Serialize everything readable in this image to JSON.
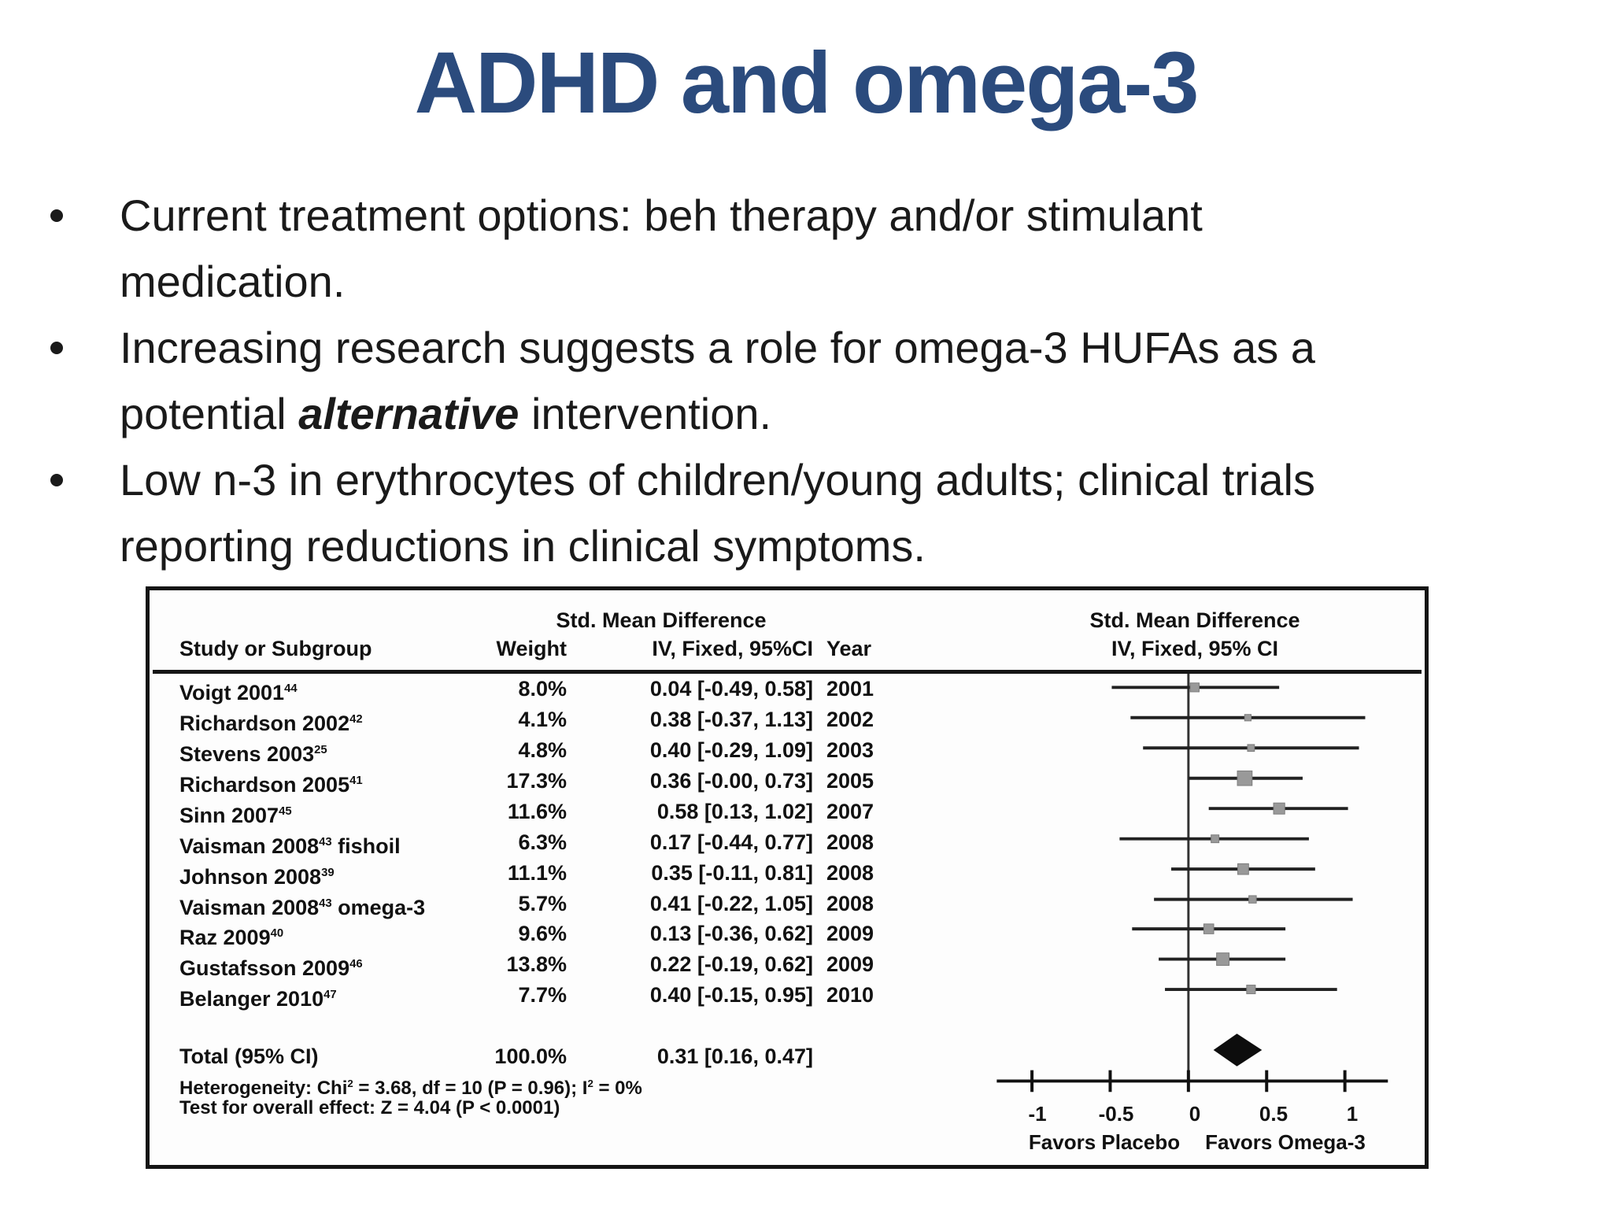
{
  "slide": {
    "title": "ADHD and omega-3",
    "bullets": [
      {
        "line1": "Current treatment options: beh therapy and/or stimulant",
        "line2": "medication."
      },
      {
        "line1": "Increasing research suggests a role for omega-3 HUFAs as a",
        "line2_pre": "potential ",
        "line2_em": "alternative",
        "line2_post": " intervention."
      },
      {
        "line1": "Low n-3 in erythrocytes of children/young adults; clinical trials",
        "line2": "reporting reductions in clinical symptoms."
      }
    ]
  },
  "figure": {
    "headers": {
      "smd_left_top": "Std. Mean Difference",
      "study": "Study or Subgroup",
      "weight": "Weight",
      "smd_left_bottom": "IV, Fixed, 95%CI",
      "year": "Year",
      "smd_right_top": "Std. Mean Difference",
      "smd_right_bottom": "IV, Fixed, 95% CI"
    },
    "total": {
      "label": "Total (95% CI)",
      "weight": "100.0%",
      "ci": "0.31 [0.16, 0.47]"
    },
    "heterogeneity": {
      "pre": "Heterogeneity: Chi",
      "sup1": "2",
      "mid": " = 3.68, df = 10 (P = 0.96); I",
      "sup2": "2",
      "post": " = 0%"
    },
    "overall": "Test for overall effect: Z = 4.04 (P < 0.0001)",
    "axis": {
      "ticks": [
        "-1",
        "-0.5",
        "0",
        "0.5",
        "1"
      ],
      "favors_left": "Favors Placebo",
      "favors_right": "Favors Omega-3"
    }
  },
  "chart_data": {
    "type": "forest",
    "title": "Std. Mean Difference, IV, Fixed, 95% CI",
    "xlabel": "Favors Placebo / Favors Omega-3",
    "xlim": [
      -1.25,
      1.3
    ],
    "x_ticks": [
      -1,
      -0.5,
      0,
      0.5,
      1
    ],
    "grid": false,
    "studies": [
      {
        "study": "Voigt 2001",
        "ref": "44",
        "suffix": "",
        "weight": "8.0%",
        "weight_pct": 8.0,
        "ci_text": "0.04 [-0.49, 0.58]",
        "mean": 0.04,
        "lo": -0.49,
        "hi": 0.58,
        "year": "2001"
      },
      {
        "study": "Richardson 2002",
        "ref": "42",
        "suffix": "",
        "weight": "4.1%",
        "weight_pct": 4.1,
        "ci_text": "0.38 [-0.37, 1.13]",
        "mean": 0.38,
        "lo": -0.37,
        "hi": 1.13,
        "year": "2002"
      },
      {
        "study": "Stevens 2003",
        "ref": "25",
        "suffix": "",
        "weight": "4.8%",
        "weight_pct": 4.8,
        "ci_text": "0.40 [-0.29, 1.09]",
        "mean": 0.4,
        "lo": -0.29,
        "hi": 1.09,
        "year": "2003"
      },
      {
        "study": "Richardson 2005",
        "ref": "41",
        "suffix": "",
        "weight": "17.3%",
        "weight_pct": 17.3,
        "ci_text": "0.36 [-0.00, 0.73]",
        "mean": 0.36,
        "lo": 0.0,
        "hi": 0.73,
        "year": "2005"
      },
      {
        "study": "Sinn 2007",
        "ref": "45",
        "suffix": "",
        "weight": "11.6%",
        "weight_pct": 11.6,
        "ci_text": "0.58 [0.13, 1.02]",
        "mean": 0.58,
        "lo": 0.13,
        "hi": 1.02,
        "year": "2007"
      },
      {
        "study": "Vaisman 2008",
        "ref": "43",
        "suffix": " fishoil",
        "weight": "6.3%",
        "weight_pct": 6.3,
        "ci_text": "0.17 [-0.44, 0.77]",
        "mean": 0.17,
        "lo": -0.44,
        "hi": 0.77,
        "year": "2008"
      },
      {
        "study": "Johnson 2008",
        "ref": "39",
        "suffix": "",
        "weight": "11.1%",
        "weight_pct": 11.1,
        "ci_text": "0.35 [-0.11, 0.81]",
        "mean": 0.35,
        "lo": -0.11,
        "hi": 0.81,
        "year": "2008"
      },
      {
        "study": "Vaisman 2008",
        "ref": "43",
        "suffix": " omega-3",
        "weight": "5.7%",
        "weight_pct": 5.7,
        "ci_text": "0.41 [-0.22, 1.05]",
        "mean": 0.41,
        "lo": -0.22,
        "hi": 1.05,
        "year": "2008"
      },
      {
        "study": "Raz 2009",
        "ref": "40",
        "suffix": "",
        "weight": "9.6%",
        "weight_pct": 9.6,
        "ci_text": "0.13 [-0.36, 0.62]",
        "mean": 0.13,
        "lo": -0.36,
        "hi": 0.62,
        "year": "2009"
      },
      {
        "study": "Gustafsson 2009",
        "ref": "46",
        "suffix": "",
        "weight": "13.8%",
        "weight_pct": 13.8,
        "ci_text": "0.22 [-0.19, 0.62]",
        "mean": 0.22,
        "lo": -0.19,
        "hi": 0.62,
        "year": "2009"
      },
      {
        "study": "Belanger 2010",
        "ref": "47",
        "suffix": "",
        "weight": "7.7%",
        "weight_pct": 7.7,
        "ci_text": "0.40 [-0.15, 0.95]",
        "mean": 0.4,
        "lo": -0.15,
        "hi": 0.95,
        "year": "2010"
      }
    ],
    "total": {
      "mean": 0.31,
      "lo": 0.16,
      "hi": 0.47
    }
  }
}
